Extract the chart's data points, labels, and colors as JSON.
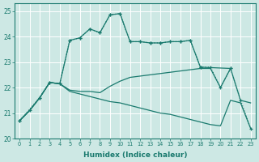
{
  "xlabel": "Humidex (Indice chaleur)",
  "xlim": [
    -0.5,
    23.5
  ],
  "ylim": [
    20.0,
    25.3
  ],
  "yticks": [
    20,
    21,
    22,
    23,
    24,
    25
  ],
  "xticks": [
    0,
    1,
    2,
    3,
    4,
    5,
    6,
    7,
    8,
    9,
    10,
    11,
    12,
    13,
    14,
    15,
    16,
    17,
    18,
    19,
    20,
    21,
    22,
    23
  ],
  "bg_color": "#cde8e4",
  "grid_color": "#ffffff",
  "line_color": "#1a7a6e",
  "curve1_x": [
    0,
    1,
    2,
    3,
    4,
    5,
    6,
    7,
    8,
    9,
    10,
    11,
    12,
    13,
    14,
    15,
    16,
    17,
    18,
    21
  ],
  "curve1_y": [
    20.7,
    21.1,
    21.6,
    22.2,
    22.15,
    23.85,
    23.95,
    24.3,
    24.15,
    24.85,
    24.9,
    23.8,
    23.8,
    23.75,
    23.75,
    23.8,
    23.8,
    23.85,
    22.8,
    22.75
  ],
  "curve2_x": [
    0,
    1,
    2,
    3,
    4,
    5,
    6,
    7,
    8,
    9,
    10,
    11,
    12,
    13,
    14,
    15,
    16,
    17,
    18,
    19,
    20,
    21,
    22,
    23
  ],
  "curve2_y": [
    20.7,
    21.1,
    21.6,
    22.2,
    22.15,
    21.9,
    21.85,
    21.85,
    21.8,
    22.05,
    22.25,
    22.4,
    22.45,
    22.5,
    22.55,
    22.6,
    22.65,
    22.7,
    22.75,
    22.75,
    22.0,
    22.75,
    21.5,
    21.4
  ],
  "curve3_x": [
    0,
    1,
    2,
    3,
    4,
    5,
    6,
    7,
    8,
    9,
    10,
    11,
    12,
    13,
    14,
    15,
    16,
    17,
    18,
    19,
    20,
    21,
    22,
    23
  ],
  "curve3_y": [
    20.7,
    21.1,
    21.6,
    22.2,
    22.15,
    21.85,
    21.75,
    21.65,
    21.55,
    21.45,
    21.4,
    21.3,
    21.2,
    21.1,
    21.0,
    20.95,
    20.85,
    20.75,
    20.65,
    20.55,
    20.5,
    21.5,
    21.4,
    20.4
  ],
  "curve4_x": [
    0,
    2,
    3,
    4,
    5,
    6,
    7,
    8,
    9,
    10,
    11,
    12,
    13,
    14,
    15,
    16,
    17,
    18,
    19,
    20,
    21,
    22,
    23
  ],
  "curve4_y": [
    20.7,
    21.6,
    22.2,
    22.15,
    23.85,
    23.95,
    24.3,
    24.15,
    24.85,
    24.9,
    23.8,
    23.8,
    23.75,
    23.75,
    23.8,
    23.8,
    23.85,
    22.8,
    22.8,
    22.0,
    22.75,
    21.5,
    20.4
  ]
}
